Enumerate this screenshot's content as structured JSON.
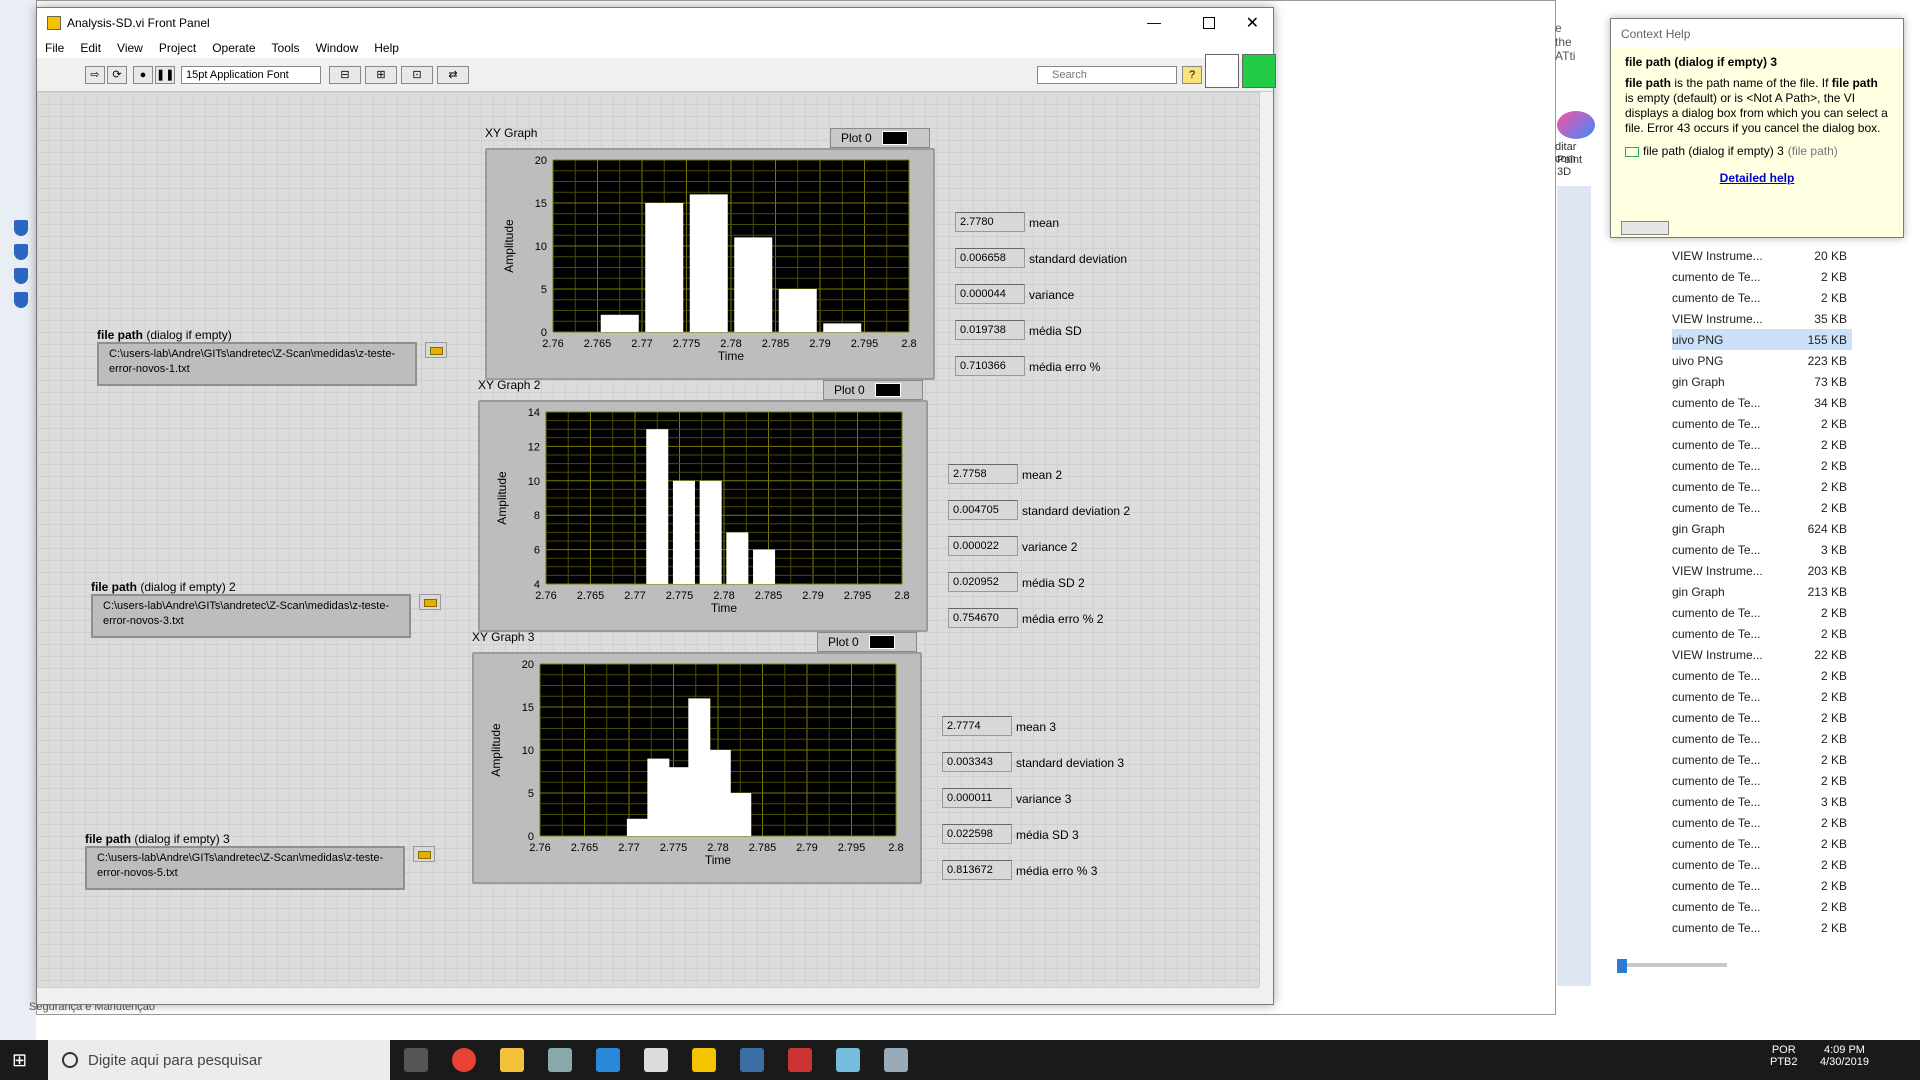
{
  "window": {
    "title": "Analysis-SD.vi Front Panel"
  },
  "menu": [
    "File",
    "Edit",
    "View",
    "Project",
    "Operate",
    "Tools",
    "Window",
    "Help"
  ],
  "toolbar": {
    "font": "15pt Application Font",
    "search_placeholder": "Search"
  },
  "bg_window": {
    "search_placeholder": "Search",
    "edit_label_1": "ditar com",
    "edit_label_2": "Paint 3D",
    "top_text": "e the ATti",
    "bottom_left_text": "Segurança e Manutenção"
  },
  "context_help": {
    "title": "Context Help",
    "heading": "file path (dialog if empty) 3",
    "body_bold1": "file path",
    "body1": " is the path name of the file. If ",
    "body_bold2": "file path",
    "body2": " is empty (default) or is <Not A Path>, the VI displays a dialog box from which you can select a file. Error 43 occurs if you cancel the dialog box.",
    "terminal": "file path (dialog if empty) 3",
    "terminal_type": "(file path)",
    "link": "Detailed help"
  },
  "files": [
    {
      "name": "VIEW Instrume...",
      "size": "20 KB"
    },
    {
      "name": "cumento de Te...",
      "size": "2 KB"
    },
    {
      "name": "cumento de Te...",
      "size": "2 KB"
    },
    {
      "name": "VIEW Instrume...",
      "size": "35 KB"
    },
    {
      "name": "uivo PNG",
      "size": "155 KB"
    },
    {
      "name": "uivo PNG",
      "size": "223 KB"
    },
    {
      "name": "gin Graph",
      "size": "73 KB"
    },
    {
      "name": "cumento de Te...",
      "size": "34 KB"
    },
    {
      "name": "cumento de Te...",
      "size": "2 KB"
    },
    {
      "name": "cumento de Te...",
      "size": "2 KB"
    },
    {
      "name": "cumento de Te...",
      "size": "2 KB"
    },
    {
      "name": "cumento de Te...",
      "size": "2 KB"
    },
    {
      "name": "cumento de Te...",
      "size": "2 KB"
    },
    {
      "name": "gin Graph",
      "size": "624 KB"
    },
    {
      "name": "cumento de Te...",
      "size": "3 KB"
    },
    {
      "name": "VIEW Instrume...",
      "size": "203 KB"
    },
    {
      "name": "gin Graph",
      "size": "213 KB"
    },
    {
      "name": "cumento de Te...",
      "size": "2 KB"
    },
    {
      "name": "cumento de Te...",
      "size": "2 KB"
    },
    {
      "name": "VIEW Instrume...",
      "size": "22 KB"
    },
    {
      "name": "cumento de Te...",
      "size": "2 KB"
    },
    {
      "name": "cumento de Te...",
      "size": "2 KB"
    },
    {
      "name": "cumento de Te...",
      "size": "2 KB"
    },
    {
      "name": "cumento de Te...",
      "size": "2 KB"
    },
    {
      "name": "cumento de Te...",
      "size": "2 KB"
    },
    {
      "name": "cumento de Te...",
      "size": "2 KB"
    },
    {
      "name": "cumento de Te...",
      "size": "3 KB"
    },
    {
      "name": "cumento de Te...",
      "size": "2 KB"
    },
    {
      "name": "cumento de Te...",
      "size": "2 KB"
    },
    {
      "name": "cumento de Te...",
      "size": "2 KB"
    },
    {
      "name": "cumento de Te...",
      "size": "2 KB"
    },
    {
      "name": "cumento de Te...",
      "size": "2 KB"
    },
    {
      "name": "cumento de Te...",
      "size": "2 KB"
    }
  ],
  "panels": [
    {
      "graph_label": "XY Graph",
      "legend": "Plot 0",
      "path_label_bold": "file path",
      "path_label_rest": " (dialog if empty)",
      "path": "C:\\users-lab\\Andre\\GITs\\andretec\\Z-Scan\\medidas\\z-teste-error-novos-1.txt",
      "indicators": [
        {
          "value": "2.7780",
          "label": "mean"
        },
        {
          "value": "0.006658",
          "label": "standard deviation"
        },
        {
          "value": "0.000044",
          "label": "variance"
        },
        {
          "value": "0.019738",
          "label": "média SD"
        },
        {
          "value": "0.710366",
          "label": "média erro %"
        }
      ]
    },
    {
      "graph_label": "XY Graph 2",
      "legend": "Plot 0",
      "path_label_bold": "file path",
      "path_label_rest": " (dialog if empty) 2",
      "path": "C:\\users-lab\\Andre\\GITs\\andretec\\Z-Scan\\medidas\\z-teste-error-novos-3.txt",
      "indicators": [
        {
          "value": "2.7758",
          "label": "mean 2"
        },
        {
          "value": "0.004705",
          "label": "standard deviation 2"
        },
        {
          "value": "0.000022",
          "label": "variance 2"
        },
        {
          "value": "0.020952",
          "label": "média SD 2"
        },
        {
          "value": "0.754670",
          "label": "média erro % 2"
        }
      ]
    },
    {
      "graph_label": "XY Graph 3",
      "legend": "Plot 0",
      "path_label_bold": "file path",
      "path_label_rest": " (dialog if empty) 3",
      "path": "C:\\users-lab\\Andre\\GITs\\andretec\\Z-Scan\\medidas\\z-teste-error-novos-5.txt",
      "indicators": [
        {
          "value": "2.7774",
          "label": "mean 3"
        },
        {
          "value": "0.003343",
          "label": "standard deviation 3"
        },
        {
          "value": "0.000011",
          "label": "variance 3"
        },
        {
          "value": "0.022598",
          "label": "média SD 3"
        },
        {
          "value": "0.813672",
          "label": "média erro % 3"
        }
      ]
    }
  ],
  "chart_data": [
    {
      "type": "bar",
      "title": "XY Graph",
      "xlabel": "Time",
      "ylabel": "Amplitude",
      "xlim": [
        2.76,
        2.8
      ],
      "ylim": [
        0,
        20
      ],
      "x_ticks": [
        "2.76",
        "2.765",
        "2.77",
        "2.775",
        "2.78",
        "2.785",
        "2.79",
        "2.795",
        "2.8"
      ],
      "y_ticks": [
        "0",
        "5",
        "10",
        "15",
        "20"
      ],
      "bars": [
        {
          "x": 2.7675,
          "value": 2
        },
        {
          "x": 2.7725,
          "value": 15
        },
        {
          "x": 2.7775,
          "value": 16
        },
        {
          "x": 2.7825,
          "value": 11
        },
        {
          "x": 2.7875,
          "value": 5
        },
        {
          "x": 2.7925,
          "value": 1
        }
      ]
    },
    {
      "type": "bar",
      "title": "XY Graph 2",
      "xlabel": "Time",
      "ylabel": "Amplitude",
      "xlim": [
        2.76,
        2.8
      ],
      "ylim": [
        4,
        14
      ],
      "x_ticks": [
        "2.76",
        "2.765",
        "2.77",
        "2.775",
        "2.78",
        "2.785",
        "2.79",
        "2.795",
        "2.8"
      ],
      "y_ticks": [
        "4",
        "6",
        "8",
        "10",
        "12",
        "14"
      ],
      "bars": [
        {
          "x": 2.7695,
          "value": 4
        },
        {
          "x": 2.7725,
          "value": 13
        },
        {
          "x": 2.7755,
          "value": 10
        },
        {
          "x": 2.7785,
          "value": 10
        },
        {
          "x": 2.7815,
          "value": 7
        },
        {
          "x": 2.7845,
          "value": 6
        }
      ]
    },
    {
      "type": "bar",
      "title": "XY Graph 3",
      "xlabel": "Time",
      "ylabel": "Amplitude",
      "xlim": [
        2.76,
        2.8
      ],
      "ylim": [
        0,
        20
      ],
      "x_ticks": [
        "2.76",
        "2.765",
        "2.77",
        "2.775",
        "2.78",
        "2.785",
        "2.79",
        "2.795",
        "2.8"
      ],
      "y_ticks": [
        "0",
        "5",
        "10",
        "15",
        "20"
      ],
      "bars": [
        {
          "x": 2.771,
          "value": 2
        },
        {
          "x": 2.7733,
          "value": 9
        },
        {
          "x": 2.7756,
          "value": 8
        },
        {
          "x": 2.7779,
          "value": 16
        },
        {
          "x": 2.7802,
          "value": 10
        },
        {
          "x": 2.7825,
          "value": 5
        }
      ]
    }
  ],
  "taskbar": {
    "search_placeholder": "Digite aqui para pesquisar",
    "lang1": "POR",
    "lang2": "PTB2",
    "time": "4:09 PM",
    "date": "4/30/2019"
  }
}
